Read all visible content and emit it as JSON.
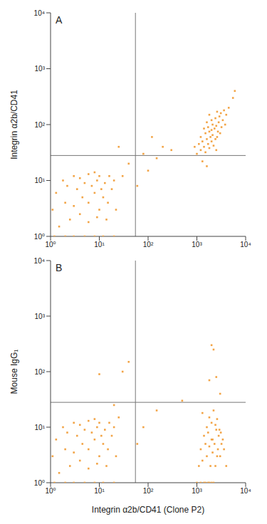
{
  "chart_data": [
    {
      "type": "scatter",
      "title": "A",
      "y_label": "Integrin α2b/CD41",
      "log": true,
      "grid": false,
      "color": "#f2a446",
      "marker": "square",
      "xlim": [
        1,
        10000
      ],
      "ylim": [
        1,
        10000
      ],
      "xticks": [
        {
          "value": 1,
          "label": "10⁰"
        },
        {
          "value": 10,
          "label": "10¹"
        },
        {
          "value": 100,
          "label": "10²"
        },
        {
          "value": 1000,
          "label": "10³"
        },
        {
          "value": 10000,
          "label": "10⁴"
        }
      ],
      "yticks": [
        {
          "value": 1,
          "label": "10⁰"
        },
        {
          "value": 10,
          "label": "10¹"
        },
        {
          "value": 100,
          "label": "10²"
        },
        {
          "value": 1000,
          "label": "10³"
        },
        {
          "value": 10000,
          "label": "10⁴"
        }
      ],
      "gates": {
        "x": 55,
        "y": 28
      },
      "x": [
        1.2,
        2,
        3,
        5,
        8,
        12,
        20,
        1.5,
        2.5,
        4,
        6,
        9,
        14,
        1.1,
        2,
        3,
        4.5,
        6,
        8,
        10,
        12,
        15,
        18,
        22,
        1.3,
        2.2,
        3.5,
        5,
        7,
        9,
        11,
        13,
        16,
        20,
        1.8,
        3,
        4,
        6,
        8,
        10,
        30,
        40,
        80,
        100,
        150,
        200,
        60,
        120,
        300,
        25,
        1000,
        1200,
        1400,
        1500,
        1700,
        1800,
        2000,
        2200,
        1100,
        1300,
        1600,
        1900,
        2100,
        2400,
        2600,
        1200,
        1500,
        1800,
        2000,
        2300,
        2700,
        3000,
        1400,
        1700,
        2100,
        2500,
        2800,
        3200,
        1600,
        2000,
        2400,
        2900,
        3400,
        1800,
        2600,
        3100,
        3600,
        4000,
        4500,
        5500,
        900,
        1300,
        1600,
        2500,
        3800,
        6000
      ],
      "values": [
        1,
        1,
        1,
        1,
        1,
        1,
        1,
        1.5,
        2,
        2.5,
        1.8,
        2.2,
        2,
        3,
        4,
        3.5,
        5,
        4,
        6,
        3,
        5,
        4,
        7,
        3,
        6,
        8,
        7,
        9,
        8,
        10,
        7,
        9,
        12,
        10,
        10,
        12,
        11,
        13,
        14,
        12,
        12,
        20,
        30,
        15,
        25,
        40,
        8,
        60,
        35,
        40,
        30,
        35,
        40,
        32,
        45,
        38,
        50,
        42,
        45,
        50,
        55,
        60,
        65,
        55,
        60,
        60,
        70,
        75,
        80,
        85,
        75,
        70,
        85,
        90,
        100,
        95,
        110,
        90,
        110,
        120,
        130,
        140,
        120,
        150,
        170,
        160,
        180,
        150,
        200,
        300,
        40,
        22,
        18,
        35,
        100,
        400
      ]
    },
    {
      "type": "scatter",
      "title": "B",
      "y_label": "Mouse IgG₁",
      "x_label": "Integrin α2b/CD41 (Clone P2)",
      "log": true,
      "grid": false,
      "color": "#f2a446",
      "marker": "square",
      "xlim": [
        1,
        10000
      ],
      "ylim": [
        1,
        10000
      ],
      "xticks": [
        {
          "value": 1,
          "label": "10⁰"
        },
        {
          "value": 10,
          "label": "10¹"
        },
        {
          "value": 100,
          "label": "10²"
        },
        {
          "value": 1000,
          "label": "10³"
        },
        {
          "value": 10000,
          "label": "10⁴"
        }
      ],
      "yticks": [
        {
          "value": 1,
          "label": "10⁰"
        },
        {
          "value": 10,
          "label": "10¹"
        },
        {
          "value": 100,
          "label": "10²"
        },
        {
          "value": 1000,
          "label": "10³"
        },
        {
          "value": 10000,
          "label": "10⁴"
        }
      ],
      "gates": {
        "x": 55,
        "y": 28
      },
      "x": [
        1.2,
        2,
        3,
        5,
        8,
        12,
        20,
        1.5,
        2.5,
        4,
        6,
        9,
        14,
        1.1,
        2,
        3,
        4.5,
        6,
        8,
        10,
        12,
        15,
        18,
        22,
        1.3,
        2.2,
        3.5,
        5,
        7,
        9,
        11,
        13,
        16,
        20,
        1.8,
        3,
        4,
        6,
        8,
        10,
        30,
        10,
        40,
        25,
        80,
        150,
        20,
        60,
        1000,
        1200,
        1400,
        1500,
        1700,
        1800,
        2000,
        2200,
        1100,
        1300,
        1600,
        1900,
        2100,
        2400,
        2600,
        1200,
        1500,
        1800,
        2000,
        2300,
        2700,
        3000,
        1400,
        1700,
        2100,
        2500,
        2800,
        3200,
        1600,
        2000,
        2400,
        2900,
        3400,
        1800,
        2600,
        3100,
        3600,
        1300,
        2200,
        4000,
        2000,
        2200,
        2500,
        1800,
        3000,
        500
      ],
      "values": [
        1,
        1,
        1,
        1,
        1,
        1,
        1,
        1.5,
        2,
        2.5,
        1.8,
        2.2,
        2,
        3,
        4,
        3.5,
        5,
        4,
        6,
        3,
        5,
        4,
        7,
        3,
        6,
        8,
        7,
        9,
        8,
        10,
        7,
        9,
        12,
        10,
        10,
        12,
        11,
        13,
        14,
        12,
        100,
        90,
        150,
        15,
        10,
        20,
        25,
        5,
        1,
        1,
        1,
        1,
        1,
        1,
        1,
        1,
        2,
        2.5,
        3,
        2,
        3.5,
        2,
        3,
        4,
        5,
        4.5,
        6,
        5,
        4,
        3,
        7,
        8,
        6,
        9,
        7,
        5,
        10,
        12,
        11,
        9,
        6,
        15,
        14,
        8,
        4,
        18,
        20,
        2,
        300,
        250,
        80,
        70,
        40,
        30
      ]
    }
  ]
}
